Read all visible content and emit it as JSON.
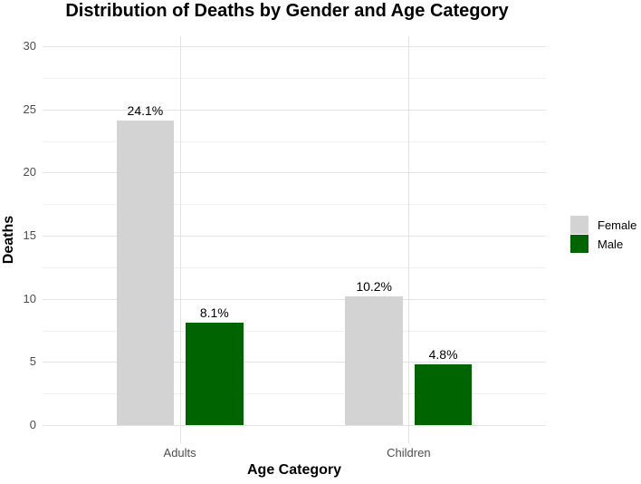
{
  "chart_data": {
    "type": "bar",
    "title": "Distribution of Deaths by Gender and Age Category",
    "xlabel": "Age Category",
    "ylabel": "Deaths",
    "categories": [
      "Adults",
      "Children"
    ],
    "series": [
      {
        "name": "Female",
        "color": "#d3d3d3",
        "values": [
          24.1,
          10.2
        ],
        "bar_labels": [
          "24.1%",
          "10.2%"
        ]
      },
      {
        "name": "Male",
        "color": "#006400",
        "values": [
          8.1,
          4.8
        ],
        "bar_labels": [
          "8.1%",
          "4.8%"
        ]
      }
    ],
    "y_ticks": [
      0,
      5,
      10,
      15,
      20,
      25,
      30
    ],
    "y_minor_ticks": [
      2.5,
      7.5,
      12.5,
      17.5,
      22.5,
      27.5
    ],
    "ylim": [
      0,
      30
    ],
    "grid": "major+minor horizontal, major vertical at categories",
    "legend_position": "right",
    "colors": {
      "background": "#ffffff",
      "grid_major": "#e3e3e3",
      "grid_minor": "#f0f0f0",
      "axis_text": "#4d4d4d",
      "title_text": "#000000"
    }
  }
}
